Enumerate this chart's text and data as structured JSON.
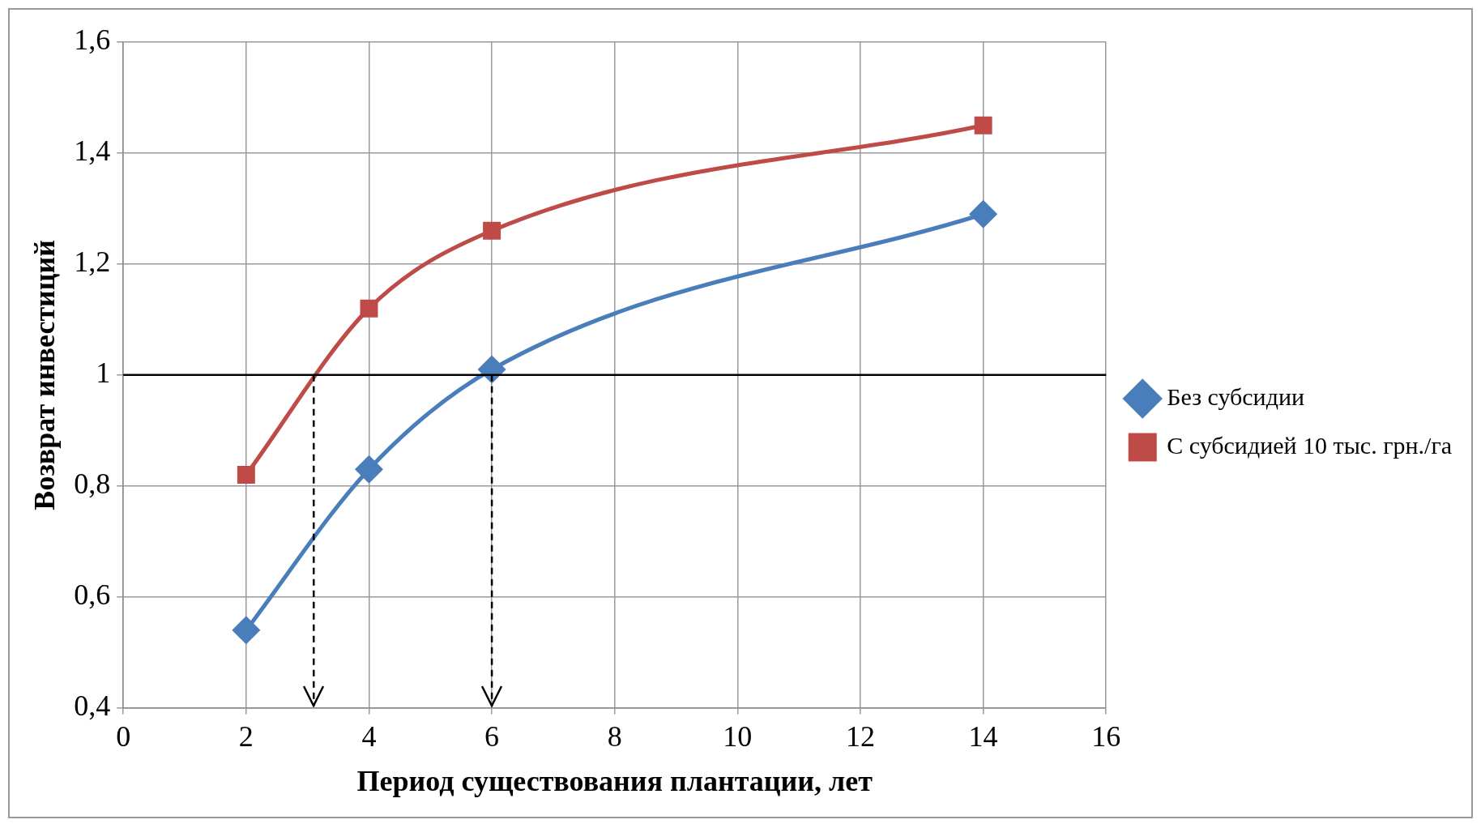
{
  "chart_data": {
    "type": "line",
    "xlabel": "Период существования плантации, лет",
    "ylabel": "Возврат инвестиций",
    "x": [
      2,
      4,
      6,
      14
    ],
    "series": [
      {
        "name": "Без субсидии",
        "color": "#4a7ebb",
        "marker": "diamond",
        "values": [
          0.54,
          0.83,
          1.01,
          1.29
        ]
      },
      {
        "name": "С субсидией 10 тыс. грн./га",
        "color": "#be4b48",
        "marker": "square",
        "values": [
          0.82,
          1.12,
          1.26,
          1.45
        ]
      }
    ],
    "xlim": [
      0,
      16
    ],
    "xticks": [
      0,
      2,
      4,
      6,
      8,
      10,
      12,
      14,
      16
    ],
    "ylim": [
      0.4,
      1.6
    ],
    "yticks": [
      {
        "value": 0.4,
        "label": "0,4"
      },
      {
        "value": 0.6,
        "label": "0,6"
      },
      {
        "value": 0.8,
        "label": "0,8"
      },
      1,
      {
        "value": 1.2,
        "label": "1,2"
      },
      {
        "value": 1.4,
        "label": "1,4"
      },
      {
        "value": 1.6,
        "label": "1,6"
      }
    ],
    "ref_lines": [
      {
        "axis": "y",
        "value": 1,
        "color": "#000000",
        "line_style": "solid"
      },
      {
        "axis": "x",
        "value": 3.1,
        "color": "#000000",
        "line_style": "dashed"
      },
      {
        "axis": "x",
        "value": 6,
        "color": "#000000",
        "line_style": "dashed"
      }
    ],
    "grid": true,
    "legend": "right"
  }
}
